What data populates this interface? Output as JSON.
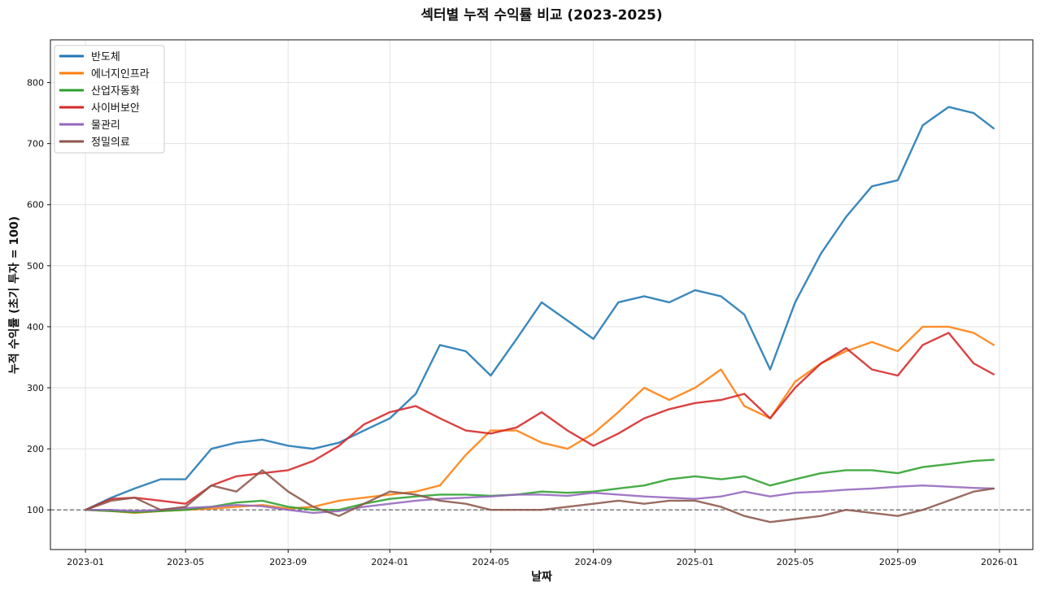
{
  "chart_data": {
    "type": "line",
    "title": "섹터별 누적 수익률 비교 (2023-2025)",
    "xlabel": "날짜",
    "ylabel": "누적 수익률 (초기 투자 = 100)",
    "xlim": [
      "2022-11-20",
      "2026-02-10"
    ],
    "ylim": [
      35,
      870
    ],
    "x_ticks": [
      "2023-01",
      "2023-05",
      "2023-09",
      "2024-01",
      "2024-05",
      "2024-09",
      "2025-01",
      "2025-05",
      "2025-09",
      "2026-01"
    ],
    "y_ticks": [
      100,
      200,
      300,
      400,
      500,
      600,
      700,
      800
    ],
    "grid": true,
    "legend": "top-left",
    "reference_line": 100,
    "x": [
      "2023-01-01",
      "2023-02-01",
      "2023-03-01",
      "2023-04-01",
      "2023-05-01",
      "2023-06-01",
      "2023-07-01",
      "2023-08-01",
      "2023-09-01",
      "2023-10-01",
      "2023-11-01",
      "2023-12-01",
      "2024-01-01",
      "2024-02-01",
      "2024-03-01",
      "2024-04-01",
      "2024-05-01",
      "2024-06-01",
      "2024-07-01",
      "2024-08-01",
      "2024-09-01",
      "2024-10-01",
      "2024-11-01",
      "2024-12-01",
      "2025-01-01",
      "2025-02-01",
      "2025-03-01",
      "2025-04-01",
      "2025-05-01",
      "2025-06-01",
      "2025-07-01",
      "2025-08-01",
      "2025-09-01",
      "2025-10-01",
      "2025-11-01",
      "2025-12-01",
      "2025-12-25"
    ],
    "series": [
      {
        "name": "반도체",
        "color": "#1f77b4",
        "values": [
          100,
          120,
          135,
          150,
          150,
          200,
          210,
          215,
          205,
          200,
          210,
          230,
          250,
          290,
          370,
          360,
          320,
          380,
          440,
          410,
          380,
          440,
          450,
          440,
          460,
          450,
          420,
          330,
          440,
          520,
          580,
          630,
          640,
          730,
          760,
          750,
          725
        ]
      },
      {
        "name": "에너지인프라",
        "color": "#ff7f0e",
        "values": [
          100,
          98,
          95,
          98,
          100,
          102,
          105,
          108,
          102,
          105,
          115,
          120,
          125,
          130,
          140,
          190,
          230,
          230,
          210,
          200,
          225,
          260,
          300,
          280,
          300,
          330,
          270,
          250,
          310,
          340,
          360,
          375,
          360,
          400,
          400,
          390,
          370
        ]
      },
      {
        "name": "산업자동화",
        "color": "#2ca02c",
        "values": [
          100,
          98,
          96,
          98,
          100,
          105,
          112,
          115,
          105,
          100,
          100,
          110,
          118,
          122,
          125,
          125,
          123,
          125,
          130,
          128,
          130,
          135,
          140,
          150,
          155,
          150,
          155,
          140,
          150,
          160,
          165,
          165,
          160,
          170,
          175,
          180,
          182
        ]
      },
      {
        "name": "사이버보안",
        "color": "#d62728",
        "values": [
          100,
          118,
          120,
          115,
          110,
          140,
          155,
          160,
          165,
          180,
          205,
          240,
          260,
          270,
          250,
          230,
          225,
          235,
          260,
          230,
          205,
          225,
          250,
          265,
          275,
          280,
          290,
          250,
          300,
          340,
          365,
          330,
          320,
          370,
          390,
          340,
          322
        ]
      },
      {
        "name": "물관리",
        "color": "#9467bd",
        "values": [
          100,
          100,
          98,
          100,
          103,
          105,
          108,
          106,
          100,
          95,
          98,
          105,
          110,
          115,
          118,
          120,
          122,
          125,
          125,
          123,
          128,
          125,
          122,
          120,
          118,
          122,
          130,
          122,
          128,
          130,
          133,
          135,
          138,
          140,
          138,
          136,
          135
        ]
      },
      {
        "name": "정밀의료",
        "color": "#8c564b",
        "values": [
          100,
          115,
          120,
          100,
          105,
          140,
          130,
          165,
          130,
          105,
          90,
          110,
          130,
          125,
          115,
          110,
          100,
          100,
          100,
          105,
          110,
          115,
          110,
          115,
          115,
          105,
          90,
          80,
          85,
          90,
          100,
          95,
          90,
          100,
          115,
          130,
          135
        ]
      }
    ]
  }
}
